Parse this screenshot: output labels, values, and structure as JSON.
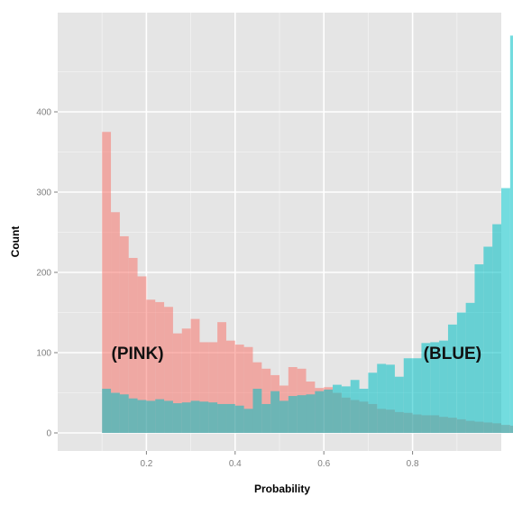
{
  "chart_data": {
    "type": "histogram",
    "xlabel": "Probability",
    "ylabel": "Count",
    "xlim": [
      0.0,
      1.0
    ],
    "ylim": [
      0,
      500
    ],
    "x_ticks": [
      0.2,
      0.4,
      0.6,
      0.8
    ],
    "x_tick_labels": [
      "0.2",
      "0.4",
      "0.6",
      "0.8"
    ],
    "y_ticks": [
      0,
      100,
      200,
      300,
      400
    ],
    "y_tick_labels": [
      "0",
      "100",
      "200",
      "300",
      "400"
    ],
    "grid": true,
    "bin_start": 0.1,
    "bin_width": 0.02,
    "series": [
      {
        "color": "#F8766D",
        "values": [
          375,
          275,
          245,
          218,
          195,
          166,
          163,
          157,
          124,
          130,
          142,
          113,
          113,
          138,
          115,
          110,
          107,
          88,
          80,
          72,
          59,
          82,
          80,
          64,
          56,
          57,
          50,
          44,
          41,
          39,
          36,
          30,
          29,
          26,
          25,
          23,
          22,
          22,
          20,
          19,
          17,
          15,
          14,
          13,
          12,
          10,
          9
        ]
      },
      {
        "color": "#00BFC4",
        "values": [
          55,
          50,
          48,
          43,
          41,
          40,
          42,
          40,
          37,
          38,
          40,
          39,
          38,
          36,
          36,
          34,
          30,
          55,
          36,
          52,
          40,
          46,
          47,
          48,
          52,
          54,
          60,
          58,
          66,
          55,
          75,
          86,
          85,
          70,
          93,
          93,
          112,
          113,
          115,
          135,
          150,
          162,
          210,
          232,
          260,
          305,
          495
        ]
      }
    ],
    "annotations": [
      {
        "text": "(PINK)",
        "x": 0.18,
        "y": 100
      },
      {
        "text": "(BLUE)",
        "x": 0.89,
        "y": 100
      }
    ]
  }
}
